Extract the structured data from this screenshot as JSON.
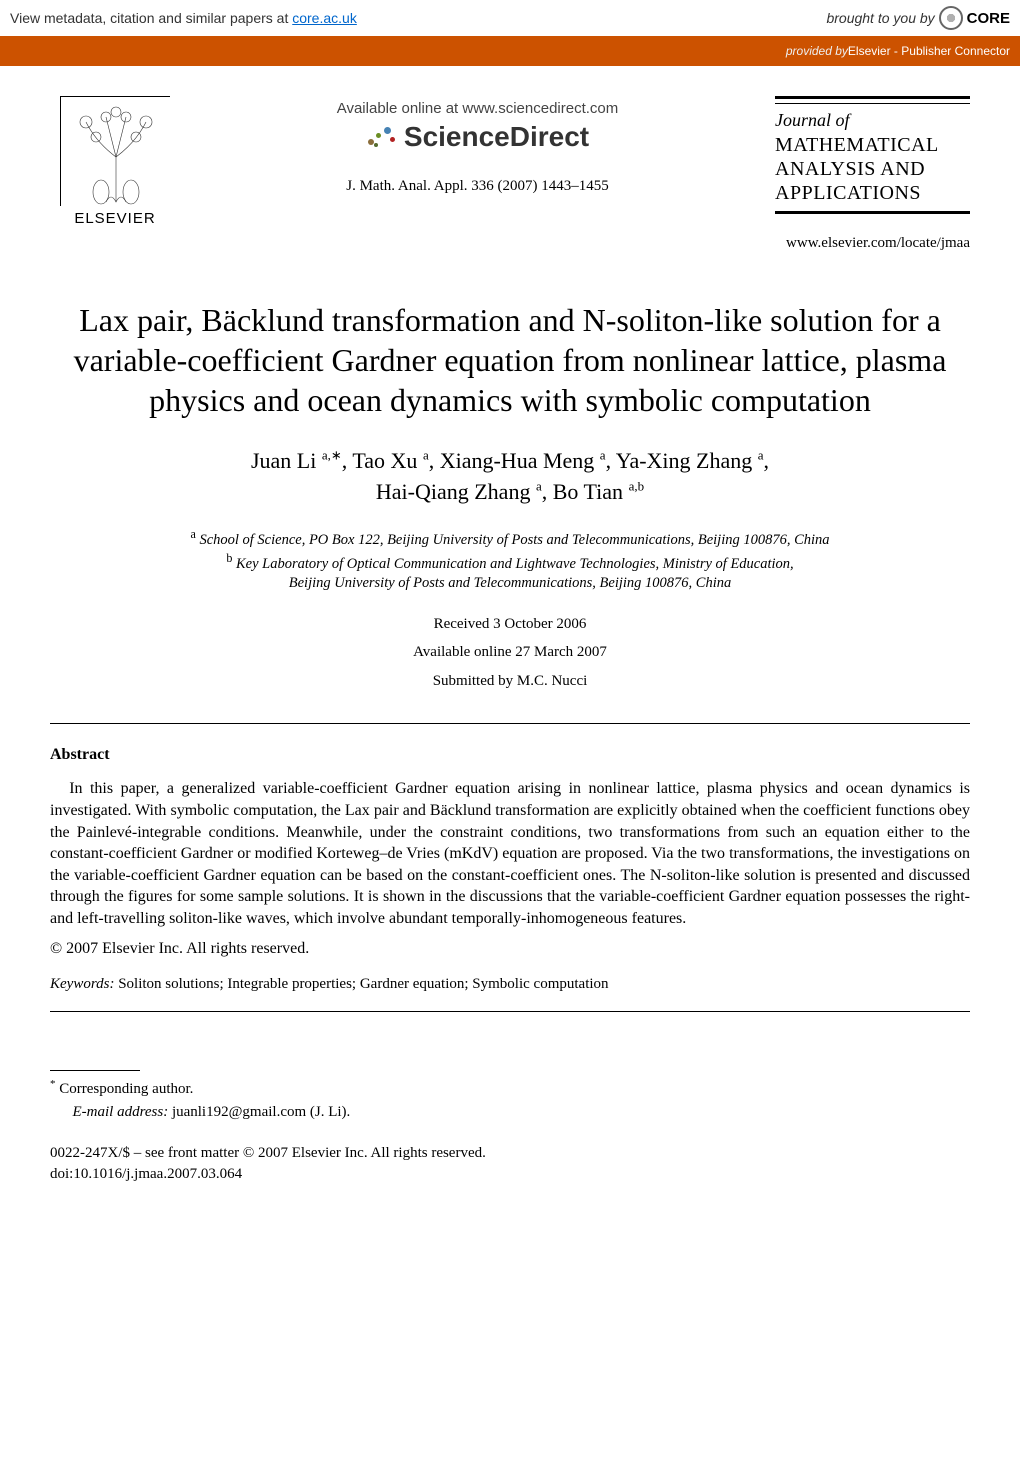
{
  "banner": {
    "left_prefix": "View metadata, citation and similar papers at ",
    "left_link": "core.ac.uk",
    "right_prefix": "brought to you by ",
    "logo_text": "CORE"
  },
  "orange": {
    "provided_by": "provided by ",
    "provider": "Elsevier - Publisher Connector"
  },
  "header": {
    "elsevier": "ELSEVIER",
    "available_online": "Available online at www.sciencedirect.com",
    "sciencedirect": "ScienceDirect",
    "journal_ref": "J. Math. Anal. Appl. 336 (2007) 1443–1455",
    "journal_of": "Journal of",
    "journal_title_1": "MATHEMATICAL",
    "journal_title_2": "ANALYSIS AND",
    "journal_title_3": "APPLICATIONS",
    "journal_url": "www.elsevier.com/locate/jmaa"
  },
  "title": "Lax pair, Bäcklund transformation and N-soliton-like solution for a variable-coefficient Gardner equation from nonlinear lattice, plasma physics and ocean dynamics with symbolic computation",
  "authors_line1": "Juan Li <sup>a,∗</sup>, Tao Xu <sup>a</sup>, Xiang-Hua Meng <sup>a</sup>, Ya-Xing Zhang <sup>a</sup>,",
  "authors_line2": "Hai-Qiang Zhang <sup>a</sup>, Bo Tian <sup>a,b</sup>",
  "affil_a": "<sup>a</sup> School of Science, PO Box 122, Beijing University of Posts and Telecommunications, Beijing 100876, China",
  "affil_b": "<sup>b</sup> Key Laboratory of Optical Communication and Lightwave Technologies, Ministry of Education,<br>Beijing University of Posts and Telecommunications, Beijing 100876, China",
  "dates": {
    "received": "Received 3 October 2006",
    "available": "Available online 27 March 2007",
    "submitted": "Submitted by M.C. Nucci"
  },
  "abstract": {
    "heading": "Abstract",
    "body": "In this paper, a generalized variable-coefficient Gardner equation arising in nonlinear lattice, plasma physics and ocean dynamics is investigated. With symbolic computation, the Lax pair and Bäcklund transformation are explicitly obtained when the coefficient functions obey the Painlevé-integrable conditions. Meanwhile, under the constraint conditions, two transformations from such an equation either to the constant-coefficient Gardner or modified Korteweg–de Vries (mKdV) equation are proposed. Via the two transformations, the investigations on the variable-coefficient Gardner equation can be based on the constant-coefficient ones. The N-soliton-like solution is presented and discussed through the figures for some sample solutions. It is shown in the discussions that the variable-coefficient Gardner equation possesses the right- and left-travelling soliton-like waves, which involve abundant temporally-inhomogeneous features.",
    "copyright": "© 2007 Elsevier Inc. All rights reserved."
  },
  "keywords": {
    "label": "Keywords:",
    "text": " Soliton solutions; Integrable properties; Gardner equation; Symbolic computation"
  },
  "footnote": {
    "corresponding": "Corresponding author.",
    "email_label": "E-mail address:",
    "email": " juanli192@gmail.com (J. Li)."
  },
  "article_id": {
    "line1": "0022-247X/$ – see front matter © 2007 Elsevier Inc. All rights reserved.",
    "line2": "doi:10.1016/j.jmaa.2007.03.064"
  },
  "colors": {
    "orange": "#cc5200",
    "link": "#0066cc",
    "text": "#000000",
    "bg": "#ffffff"
  }
}
